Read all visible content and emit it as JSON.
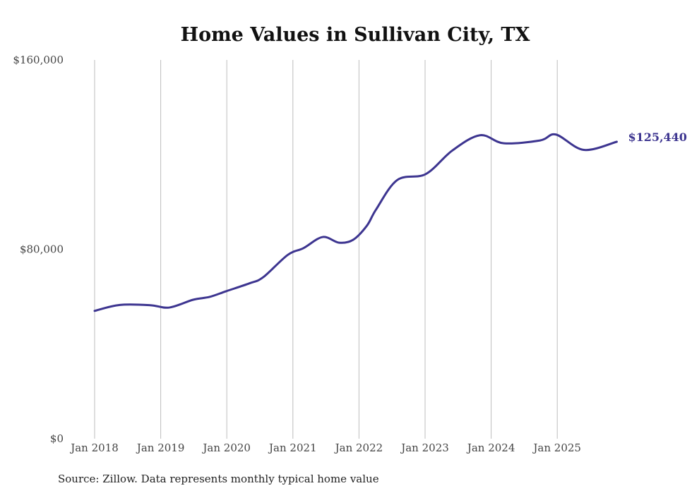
{
  "chart_data": {
    "type": "line",
    "title": "Home Values in Sullivan City, TX",
    "source": "Source: Zillow. Data represents monthly typical home value",
    "xlabel": "",
    "ylabel": "",
    "ylim": [
      0,
      160000
    ],
    "xlim": [
      2018,
      2026
    ],
    "y_ticks": [
      {
        "value": 0,
        "label": "$0"
      },
      {
        "value": 80000,
        "label": "$80,000"
      },
      {
        "value": 160000,
        "label": "$160,000"
      }
    ],
    "x_ticks": [
      {
        "value": 2018,
        "label": "Jan 2018"
      },
      {
        "value": 2019,
        "label": "Jan 2019"
      },
      {
        "value": 2020,
        "label": "Jan 2020"
      },
      {
        "value": 2021,
        "label": "Jan 2021"
      },
      {
        "value": 2022,
        "label": "Jan 2022"
      },
      {
        "value": 2023,
        "label": "Jan 2023"
      },
      {
        "value": 2024,
        "label": "Jan 2024"
      },
      {
        "value": 2025,
        "label": "Jan 2025"
      }
    ],
    "grid": "vertical",
    "series": [
      {
        "name": "Typical home value",
        "color": "#3d3590",
        "end_label": "$125,440",
        "points": [
          [
            2018.0,
            54000
          ],
          [
            2018.38,
            56500
          ],
          [
            2018.84,
            56400
          ],
          [
            2019.13,
            55400
          ],
          [
            2019.49,
            58700
          ],
          [
            2019.74,
            59900
          ],
          [
            2019.99,
            62300
          ],
          [
            2020.34,
            65600
          ],
          [
            2020.55,
            68200
          ],
          [
            2020.92,
            77600
          ],
          [
            2021.16,
            80500
          ],
          [
            2021.45,
            85200
          ],
          [
            2021.7,
            82800
          ],
          [
            2021.91,
            84000
          ],
          [
            2022.12,
            90000
          ],
          [
            2022.26,
            96900
          ],
          [
            2022.58,
            109300
          ],
          [
            2023.01,
            111800
          ],
          [
            2023.41,
            121700
          ],
          [
            2023.83,
            128200
          ],
          [
            2024.19,
            124800
          ],
          [
            2024.74,
            126000
          ],
          [
            2024.98,
            128500
          ],
          [
            2025.4,
            122000
          ],
          [
            2025.9,
            125440
          ]
        ]
      }
    ]
  }
}
